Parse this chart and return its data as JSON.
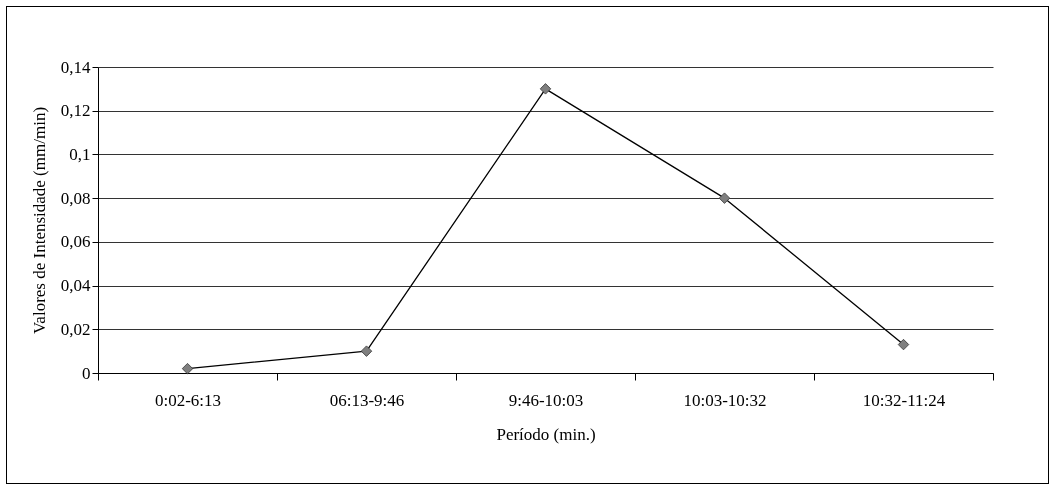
{
  "chart_data": {
    "type": "line",
    "xlabel": "Período (min.)",
    "ylabel": "Valores de Intensidade (mm/min)",
    "categories": [
      "0:02-6:13",
      "06:13-9:46",
      "9:46-10:03",
      "10:03-10:32",
      "10:32-11:24"
    ],
    "series": [
      {
        "color": "#000000",
        "values": [
          0.002,
          0.01,
          0.13,
          0.08,
          0.013
        ]
      }
    ],
    "ylim": [
      0,
      0.14
    ],
    "yticks": [
      {
        "value": 0,
        "label": "0"
      },
      {
        "value": 0.02,
        "label": "0,02"
      },
      {
        "value": 0.04,
        "label": "0,04"
      },
      {
        "value": 0.06,
        "label": "0,06"
      },
      {
        "value": 0.08,
        "label": "0,08"
      },
      {
        "value": 0.1,
        "label": "0,1"
      },
      {
        "value": 0.12,
        "label": "0,12"
      },
      {
        "value": 0.14,
        "label": "0,14"
      }
    ],
    "grid": "y",
    "marker": "diamond",
    "line_style": "solid",
    "legend": false
  }
}
